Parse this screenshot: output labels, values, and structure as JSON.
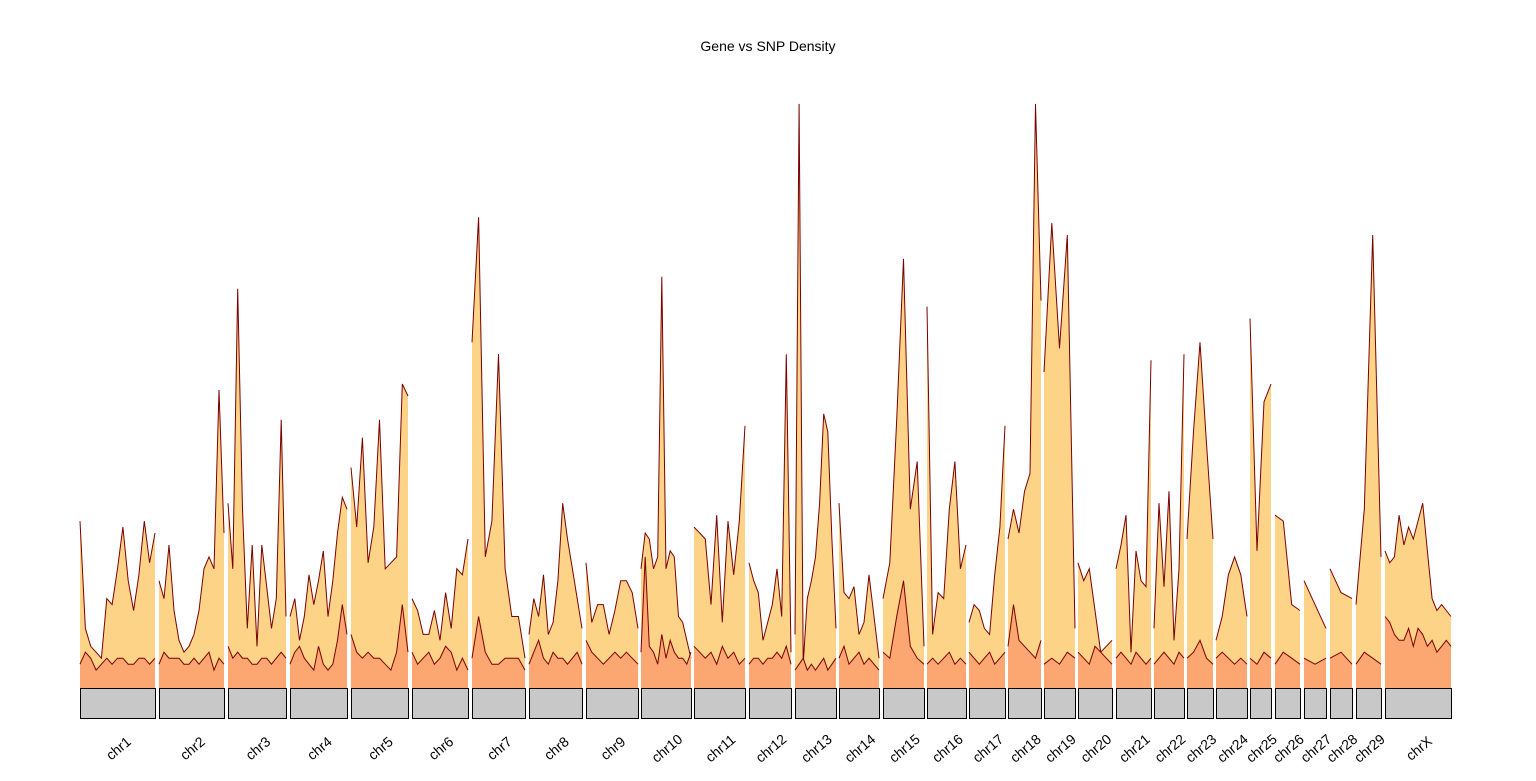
{
  "chart_data": {
    "type": "area",
    "title": "Gene vs SNP Density",
    "xlabel": "",
    "ylabel": "",
    "grid": false,
    "legend": "none",
    "colors": {
      "snp_fill": "#fdd387",
      "gene_fill": "#fca672",
      "line": "#7a0000",
      "ideogram": "#c8c8c8",
      "ideogram_border": "#000000"
    },
    "series": [
      {
        "key": "snp",
        "chromosomes": [
          {
            "chrom": "chr1",
            "values": [
              0.28,
              0.1,
              0.07,
              0.06,
              0.05,
              0.15,
              0.14,
              0.2,
              0.27,
              0.18,
              0.13,
              0.19,
              0.28,
              0.21,
              0.26
            ]
          },
          {
            "chrom": "chr2",
            "values": [
              0.18,
              0.15,
              0.24,
              0.13,
              0.08,
              0.06,
              0.07,
              0.09,
              0.13,
              0.2,
              0.22,
              0.2,
              0.5,
              0.26
            ]
          },
          {
            "chrom": "chr3",
            "values": [
              0.31,
              0.2,
              0.67,
              0.3,
              0.1,
              0.24,
              0.07,
              0.24,
              0.17,
              0.1,
              0.15,
              0.45,
              0.12
            ]
          },
          {
            "chrom": "chr4",
            "values": [
              0.12,
              0.15,
              0.08,
              0.12,
              0.19,
              0.14,
              0.18,
              0.23,
              0.12,
              0.18,
              0.26,
              0.32,
              0.3
            ]
          },
          {
            "chrom": "chr5",
            "values": [
              0.37,
              0.27,
              0.42,
              0.21,
              0.27,
              0.45,
              0.2,
              0.21,
              0.22,
              0.51,
              0.49
            ]
          },
          {
            "chrom": "chr6",
            "values": [
              0.15,
              0.13,
              0.09,
              0.09,
              0.13,
              0.08,
              0.16,
              0.1,
              0.2,
              0.19,
              0.25
            ]
          },
          {
            "chrom": "chr7",
            "values": [
              0.58,
              0.79,
              0.22,
              0.28,
              0.56,
              0.2,
              0.12,
              0.12,
              0.05
            ]
          },
          {
            "chrom": "chr8",
            "values": [
              0.09,
              0.15,
              0.12,
              0.19,
              0.09,
              0.11,
              0.18,
              0.31,
              0.25,
              0.2,
              0.15,
              0.1
            ]
          },
          {
            "chrom": "chr9",
            "values": [
              0.21,
              0.11,
              0.14,
              0.14,
              0.09,
              0.13,
              0.18,
              0.18,
              0.16,
              0.1
            ]
          },
          {
            "chrom": "chr10",
            "values": [
              0.2,
              0.26,
              0.25,
              0.2,
              0.22,
              0.69,
              0.2,
              0.23,
              0.22,
              0.12,
              0.11,
              0.08,
              0.05
            ]
          },
          {
            "chrom": "chr11",
            "values": [
              0.27,
              0.26,
              0.25,
              0.14,
              0.29,
              0.11,
              0.28,
              0.19,
              0.28,
              0.44
            ]
          },
          {
            "chrom": "chr12",
            "values": [
              0.21,
              0.18,
              0.16,
              0.08,
              0.11,
              0.14,
              0.2,
              0.12,
              0.56,
              0.06
            ]
          },
          {
            "chrom": "chr13",
            "values": [
              0.09,
              0.98,
              0.04,
              0.15,
              0.18,
              0.22,
              0.31,
              0.46,
              0.43,
              0.25,
              0.1
            ]
          },
          {
            "chrom": "chr14",
            "values": [
              0.31,
              0.16,
              0.15,
              0.17,
              0.09,
              0.11,
              0.19,
              0.12,
              0.05
            ]
          },
          {
            "chrom": "chr15",
            "values": [
              0.15,
              0.21,
              0.45,
              0.72,
              0.3,
              0.38,
              0.07
            ]
          },
          {
            "chrom": "chr16",
            "values": [
              0.64,
              0.09,
              0.16,
              0.15,
              0.3,
              0.38,
              0.2,
              0.24
            ]
          },
          {
            "chrom": "chr17",
            "values": [
              0.11,
              0.14,
              0.13,
              0.1,
              0.09,
              0.19,
              0.27,
              0.44
            ]
          },
          {
            "chrom": "chr18",
            "values": [
              0.25,
              0.3,
              0.26,
              0.33,
              0.36,
              0.98,
              0.65
            ]
          },
          {
            "chrom": "chr19",
            "values": [
              0.53,
              0.78,
              0.57,
              0.76,
              0.1
            ]
          },
          {
            "chrom": "chr20",
            "values": [
              0.21,
              0.18,
              0.2,
              0.13,
              0.06,
              0.07,
              0.08
            ]
          },
          {
            "chrom": "chr21",
            "values": [
              0.2,
              0.24,
              0.29,
              0.06,
              0.23,
              0.18,
              0.17,
              0.55
            ]
          },
          {
            "chrom": "chr22",
            "values": [
              0.1,
              0.31,
              0.17,
              0.33,
              0.08,
              0.2,
              0.56
            ]
          },
          {
            "chrom": "chr23",
            "values": [
              0.25,
              0.43,
              0.58,
              0.41,
              0.25
            ]
          },
          {
            "chrom": "chr24",
            "values": [
              0.08,
              0.12,
              0.19,
              0.22,
              0.19,
              0.12
            ]
          },
          {
            "chrom": "chr25",
            "values": [
              0.62,
              0.23,
              0.48,
              0.51
            ]
          },
          {
            "chrom": "chr26",
            "values": [
              0.29,
              0.28,
              0.14,
              0.13
            ]
          },
          {
            "chrom": "chr27",
            "values": [
              0.18,
              0.14,
              0.1
            ]
          },
          {
            "chrom": "chr28",
            "values": [
              0.2,
              0.16,
              0.15
            ]
          },
          {
            "chrom": "chr29",
            "values": [
              0.14,
              0.3,
              0.76,
              0.22
            ]
          },
          {
            "chrom": "chrX",
            "values": [
              0.23,
              0.21,
              0.22,
              0.29,
              0.24,
              0.27,
              0.25,
              0.28,
              0.31,
              0.23,
              0.15,
              0.13,
              0.14,
              0.13,
              0.12
            ]
          }
        ]
      },
      {
        "key": "gene",
        "chromosomes": [
          {
            "chrom": "chr1",
            "values": [
              0.04,
              0.06,
              0.05,
              0.03,
              0.04,
              0.05,
              0.04,
              0.05,
              0.05,
              0.04,
              0.04,
              0.05,
              0.05,
              0.04,
              0.05
            ]
          },
          {
            "chrom": "chr2",
            "values": [
              0.04,
              0.06,
              0.05,
              0.05,
              0.05,
              0.04,
              0.04,
              0.05,
              0.04,
              0.05,
              0.06,
              0.03,
              0.05,
              0.04
            ]
          },
          {
            "chrom": "chr3",
            "values": [
              0.07,
              0.05,
              0.06,
              0.05,
              0.05,
              0.04,
              0.04,
              0.05,
              0.05,
              0.04,
              0.05,
              0.06,
              0.05
            ]
          },
          {
            "chrom": "chr4",
            "values": [
              0.04,
              0.06,
              0.07,
              0.05,
              0.04,
              0.03,
              0.07,
              0.04,
              0.03,
              0.04,
              0.08,
              0.14,
              0.09
            ]
          },
          {
            "chrom": "chr5",
            "values": [
              0.09,
              0.06,
              0.05,
              0.06,
              0.05,
              0.05,
              0.04,
              0.03,
              0.06,
              0.14,
              0.06
            ]
          },
          {
            "chrom": "chr6",
            "values": [
              0.06,
              0.04,
              0.05,
              0.06,
              0.04,
              0.05,
              0.07,
              0.06,
              0.03,
              0.05,
              0.03
            ]
          },
          {
            "chrom": "chr7",
            "values": [
              0.05,
              0.12,
              0.06,
              0.04,
              0.04,
              0.05,
              0.05,
              0.05,
              0.03
            ]
          },
          {
            "chrom": "chr8",
            "values": [
              0.04,
              0.06,
              0.08,
              0.05,
              0.04,
              0.06,
              0.05,
              0.05,
              0.04,
              0.05,
              0.06,
              0.04
            ]
          },
          {
            "chrom": "chr9",
            "values": [
              0.08,
              0.06,
              0.05,
              0.04,
              0.05,
              0.06,
              0.05,
              0.06,
              0.05,
              0.04
            ]
          },
          {
            "chrom": "chr10",
            "values": [
              0.06,
              0.22,
              0.07,
              0.06,
              0.04,
              0.09,
              0.05,
              0.08,
              0.06,
              0.05,
              0.05,
              0.04,
              0.06
            ]
          },
          {
            "chrom": "chr11",
            "values": [
              0.07,
              0.06,
              0.05,
              0.06,
              0.04,
              0.07,
              0.05,
              0.06,
              0.04,
              0.05
            ]
          },
          {
            "chrom": "chr12",
            "values": [
              0.04,
              0.05,
              0.05,
              0.04,
              0.05,
              0.05,
              0.06,
              0.05,
              0.07,
              0.04
            ]
          },
          {
            "chrom": "chr13",
            "values": [
              0.03,
              0.04,
              0.05,
              0.03,
              0.04,
              0.03,
              0.04,
              0.05,
              0.03,
              0.04,
              0.05
            ]
          },
          {
            "chrom": "chr14",
            "values": [
              0.05,
              0.07,
              0.04,
              0.05,
              0.06,
              0.04,
              0.05,
              0.04,
              0.03
            ]
          },
          {
            "chrom": "chr15",
            "values": [
              0.06,
              0.05,
              0.12,
              0.18,
              0.07,
              0.05,
              0.04
            ]
          },
          {
            "chrom": "chr16",
            "values": [
              0.04,
              0.05,
              0.04,
              0.05,
              0.06,
              0.04,
              0.05,
              0.04
            ]
          },
          {
            "chrom": "chr17",
            "values": [
              0.06,
              0.05,
              0.04,
              0.05,
              0.06,
              0.04,
              0.05,
              0.06
            ]
          },
          {
            "chrom": "chr18",
            "values": [
              0.07,
              0.14,
              0.08,
              0.07,
              0.06,
              0.05,
              0.08
            ]
          },
          {
            "chrom": "chr19",
            "values": [
              0.04,
              0.05,
              0.04,
              0.06,
              0.05
            ]
          },
          {
            "chrom": "chr20",
            "values": [
              0.06,
              0.05,
              0.04,
              0.07,
              0.06,
              0.05,
              0.04
            ]
          },
          {
            "chrom": "chr21",
            "values": [
              0.05,
              0.06,
              0.05,
              0.04,
              0.06,
              0.05,
              0.04,
              0.05
            ]
          },
          {
            "chrom": "chr22",
            "values": [
              0.04,
              0.05,
              0.06,
              0.05,
              0.04,
              0.06,
              0.05
            ]
          },
          {
            "chrom": "chr23",
            "values": [
              0.05,
              0.06,
              0.08,
              0.05,
              0.04
            ]
          },
          {
            "chrom": "chr24",
            "values": [
              0.05,
              0.06,
              0.05,
              0.04,
              0.05,
              0.04
            ]
          },
          {
            "chrom": "chr25",
            "values": [
              0.05,
              0.04,
              0.06,
              0.05
            ]
          },
          {
            "chrom": "chr26",
            "values": [
              0.04,
              0.06,
              0.05,
              0.04
            ]
          },
          {
            "chrom": "chr27",
            "values": [
              0.05,
              0.04,
              0.05
            ]
          },
          {
            "chrom": "chr28",
            "values": [
              0.05,
              0.06,
              0.04
            ]
          },
          {
            "chrom": "chr29",
            "values": [
              0.04,
              0.06,
              0.05,
              0.04
            ]
          },
          {
            "chrom": "chrX",
            "values": [
              0.12,
              0.11,
              0.09,
              0.08,
              0.08,
              0.1,
              0.07,
              0.1,
              0.09,
              0.07,
              0.08,
              0.06,
              0.07,
              0.08,
              0.07
            ]
          }
        ]
      }
    ],
    "categories": [
      "chr1",
      "chr2",
      "chr3",
      "chr4",
      "chr5",
      "chr6",
      "chr7",
      "chr8",
      "chr9",
      "chr10",
      "chr11",
      "chr12",
      "chr13",
      "chr14",
      "chr15",
      "chr16",
      "chr17",
      "chr18",
      "chr19",
      "chr20",
      "chr21",
      "chr22",
      "chr23",
      "chr24",
      "chr25",
      "chr26",
      "chr27",
      "chr28",
      "chr29",
      "chrX"
    ]
  }
}
